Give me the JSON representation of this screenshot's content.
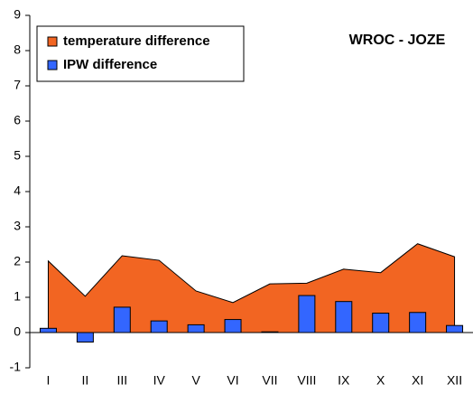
{
  "chart_data": {
    "type": "combo",
    "annotation": "WROC - JOZE",
    "categories": [
      "I",
      "II",
      "III",
      "IV",
      "V",
      "VI",
      "VII",
      "VIII",
      "IX",
      "X",
      "XI",
      "XII"
    ],
    "series": [
      {
        "name": "temperature difference",
        "type": "area",
        "color": "#f26522",
        "values": [
          2.03,
          1.03,
          2.18,
          2.05,
          1.18,
          0.85,
          1.38,
          1.4,
          1.8,
          1.7,
          2.52,
          2.15
        ]
      },
      {
        "name": "IPW difference",
        "type": "bar",
        "color": "#3366ff",
        "values": [
          0.12,
          -0.27,
          0.72,
          0.33,
          0.22,
          0.37,
          0.02,
          1.05,
          0.88,
          0.55,
          0.57,
          0.2
        ]
      }
    ],
    "ylim": [
      -1,
      9
    ],
    "yticks": [
      -1,
      0,
      1,
      2,
      3,
      4,
      5,
      6,
      7,
      8,
      9
    ],
    "legend": "top-left"
  }
}
